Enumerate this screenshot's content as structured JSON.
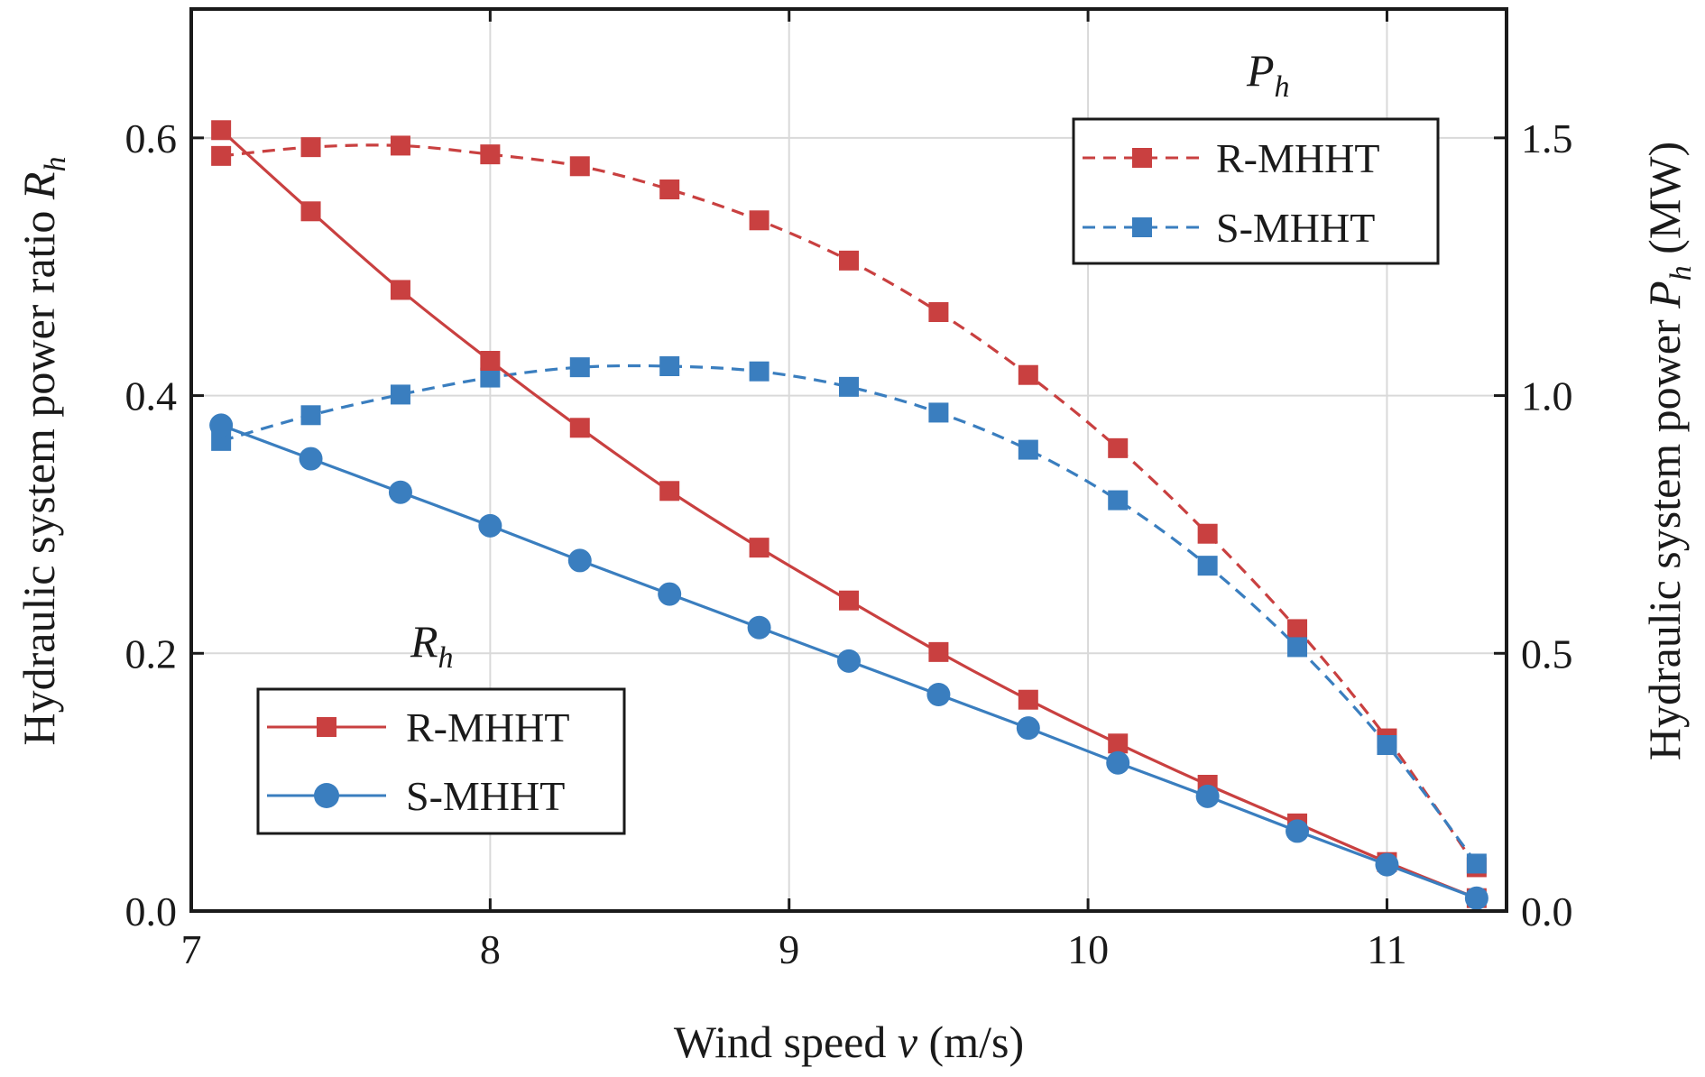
{
  "chart_data": {
    "type": "line",
    "xlabel": {
      "prefix": "Wind speed ",
      "var": "v",
      "suffix": " (m/s)"
    },
    "ylabel_left": {
      "prefix": "Hydraulic system power ratio ",
      "var": "R",
      "sub": "h"
    },
    "ylabel_right": {
      "prefix": "Hydraulic system power ",
      "var": "P",
      "sub": "h",
      "suffix": " (MW)"
    },
    "xlim": [
      7,
      11.4
    ],
    "ylim_left": [
      0,
      0.7
    ],
    "ylim_right": [
      0,
      1.75
    ],
    "x_ticks": [
      "7",
      "8",
      "9",
      "10",
      "11"
    ],
    "y_left_ticks": [
      "0.0",
      "0.2",
      "0.4",
      "0.6"
    ],
    "y_right_ticks": [
      "0.0",
      "0.5",
      "1.0",
      "1.5"
    ],
    "grid": true,
    "x": [
      7.1,
      7.4,
      7.7,
      8.0,
      8.3,
      8.6,
      8.9,
      9.2,
      9.5,
      9.8,
      10.1,
      10.4,
      10.7,
      11.0,
      11.3
    ],
    "legend_Rh": {
      "title_var": "R",
      "title_sub": "h",
      "placement": "bottom-left"
    },
    "legend_Ph": {
      "title_var": "P",
      "title_sub": "h",
      "placement": "top-right"
    },
    "series": [
      {
        "name": "R-MHHT",
        "group": "Rh",
        "axis": "left",
        "marker": "square",
        "dash": false,
        "color": "#c94040",
        "values": [
          0.606,
          0.543,
          0.482,
          0.427,
          0.375,
          0.326,
          0.282,
          0.241,
          0.201,
          0.164,
          0.13,
          0.098,
          0.068,
          0.038,
          0.01
        ]
      },
      {
        "name": "S-MHHT",
        "group": "Rh",
        "axis": "left",
        "marker": "circle",
        "dash": false,
        "color": "#3a7ebf",
        "values": [
          0.377,
          0.351,
          0.325,
          0.299,
          0.272,
          0.246,
          0.22,
          0.194,
          0.168,
          0.142,
          0.115,
          0.089,
          0.062,
          0.036,
          0.01
        ]
      },
      {
        "name": "R-MHHT",
        "group": "Ph",
        "axis": "right",
        "marker": "square",
        "dash": true,
        "color": "#c94040",
        "values": [
          1.465,
          1.482,
          1.485,
          1.468,
          1.445,
          1.4,
          1.34,
          1.262,
          1.162,
          1.04,
          0.898,
          0.732,
          0.547,
          0.335,
          0.085
        ]
      },
      {
        "name": "S-MHHT",
        "group": "Ph",
        "axis": "right",
        "marker": "square",
        "dash": true,
        "color": "#3a7ebf",
        "values": [
          0.912,
          0.962,
          1.002,
          1.035,
          1.055,
          1.057,
          1.047,
          1.017,
          0.967,
          0.895,
          0.797,
          0.67,
          0.512,
          0.322,
          0.092
        ]
      }
    ]
  }
}
